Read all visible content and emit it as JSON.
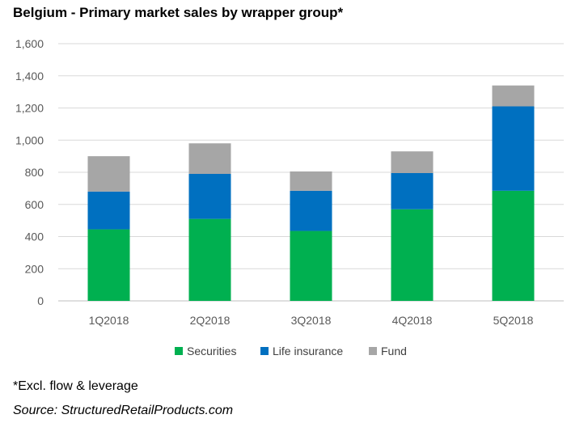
{
  "title": "Belgium - Primary market sales by wrapper group*",
  "footnote": "*Excl. flow & leverage",
  "source": "Source: StructuredRetailProducts.com",
  "chart_data": {
    "type": "bar",
    "stacked": true,
    "title": "Belgium - Primary market sales by wrapper group*",
    "categories": [
      "1Q2018",
      "2Q2018",
      "3Q2018",
      "4Q2018",
      "5Q2018"
    ],
    "series": [
      {
        "name": "Securities",
        "color": "#00b050",
        "values": [
          445,
          510,
          435,
          570,
          685
        ]
      },
      {
        "name": "Life insurance",
        "color": "#0070c0",
        "values": [
          235,
          280,
          250,
          225,
          525
        ]
      },
      {
        "name": "Fund",
        "color": "#a6a6a6",
        "values": [
          220,
          190,
          120,
          135,
          130
        ]
      }
    ],
    "ylim": [
      0,
      1600
    ],
    "yticks": [
      0,
      200,
      400,
      600,
      800,
      1000,
      1200,
      1400,
      1600
    ],
    "ytick_labels": [
      "0",
      "200",
      "400",
      "600",
      "800",
      "1,000",
      "1,200",
      "1,400",
      "1,600"
    ],
    "grid": true,
    "legend": "bottom"
  }
}
